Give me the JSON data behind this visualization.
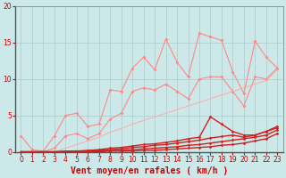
{
  "bg_color": "#cce8e8",
  "grid_color": "#aacccc",
  "tick_color": "#cc0000",
  "xlabel": "Vent moyen/en rafales ( km/h )",
  "xlabel_color": "#cc0000",
  "xlim": [
    -0.5,
    23.5
  ],
  "ylim": [
    0,
    20
  ],
  "yticks": [
    0,
    5,
    10,
    15,
    20
  ],
  "xticks": [
    0,
    1,
    2,
    3,
    4,
    5,
    6,
    7,
    8,
    9,
    10,
    11,
    12,
    13,
    14,
    15,
    16,
    17,
    18,
    19,
    20,
    21,
    22,
    23
  ],
  "x": [
    0,
    1,
    2,
    3,
    4,
    5,
    6,
    7,
    8,
    9,
    10,
    11,
    12,
    13,
    14,
    15,
    16,
    17,
    18,
    19,
    20,
    21,
    22,
    23
  ],
  "lines": [
    {
      "color": "#ff8888",
      "lw": 0.8,
      "marker": "D",
      "ms": 2.0,
      "y": [
        2.2,
        0.3,
        0.1,
        2.2,
        5.0,
        5.3,
        3.5,
        3.8,
        8.5,
        8.3,
        11.5,
        13.0,
        11.3,
        15.5,
        12.3,
        10.3,
        16.3,
        15.8,
        15.3,
        11.0,
        8.0,
        15.2,
        13.0,
        11.5
      ]
    },
    {
      "color": "#ff8888",
      "lw": 0.8,
      "marker": "D",
      "ms": 2.0,
      "y": [
        0.0,
        0.0,
        0.0,
        0.5,
        2.2,
        2.5,
        1.8,
        2.5,
        4.5,
        5.3,
        8.3,
        8.8,
        8.5,
        9.3,
        8.3,
        7.3,
        10.0,
        10.3,
        10.3,
        8.3,
        6.3,
        10.3,
        10.0,
        11.5
      ]
    },
    {
      "color": "#ffaaaa",
      "lw": 0.7,
      "marker": null,
      "ms": 0,
      "y": [
        0.0,
        0.0,
        0.0,
        0.0,
        0.5,
        1.0,
        1.5,
        2.0,
        2.7,
        3.2,
        3.8,
        4.3,
        4.8,
        5.3,
        5.8,
        6.3,
        6.8,
        7.3,
        7.8,
        8.3,
        8.8,
        9.3,
        9.8,
        11.3
      ]
    },
    {
      "color": "#cc2222",
      "lw": 1.0,
      "marker": "D",
      "ms": 1.8,
      "y": [
        0.0,
        0.0,
        0.0,
        0.0,
        0.1,
        0.1,
        0.2,
        0.3,
        0.5,
        0.6,
        0.8,
        1.0,
        1.1,
        1.3,
        1.5,
        1.8,
        2.0,
        4.8,
        3.8,
        2.8,
        2.3,
        2.3,
        2.8,
        3.5
      ]
    },
    {
      "color": "#cc2222",
      "lw": 1.0,
      "marker": "D",
      "ms": 1.8,
      "y": [
        0.0,
        0.0,
        0.0,
        0.0,
        0.0,
        0.1,
        0.1,
        0.2,
        0.3,
        0.4,
        0.6,
        0.7,
        0.9,
        1.0,
        1.2,
        1.4,
        1.6,
        1.9,
        2.1,
        2.3,
        2.0,
        2.3,
        2.8,
        3.3
      ]
    },
    {
      "color": "#cc2222",
      "lw": 1.0,
      "marker": "D",
      "ms": 1.8,
      "y": [
        0.0,
        0.0,
        0.0,
        0.0,
        0.0,
        0.0,
        0.1,
        0.1,
        0.2,
        0.2,
        0.3,
        0.4,
        0.5,
        0.6,
        0.7,
        0.9,
        1.0,
        1.2,
        1.4,
        1.6,
        1.8,
        2.0,
        2.3,
        3.0
      ]
    },
    {
      "color": "#cc2222",
      "lw": 1.0,
      "marker": "D",
      "ms": 1.8,
      "y": [
        0.0,
        0.0,
        0.0,
        0.0,
        0.0,
        0.0,
        0.0,
        0.0,
        0.1,
        0.1,
        0.1,
        0.2,
        0.2,
        0.3,
        0.4,
        0.5,
        0.6,
        0.7,
        0.9,
        1.0,
        1.2,
        1.5,
        1.8,
        2.5
      ]
    }
  ],
  "tick_fontsize": 5.5,
  "xlabel_fontsize": 7
}
